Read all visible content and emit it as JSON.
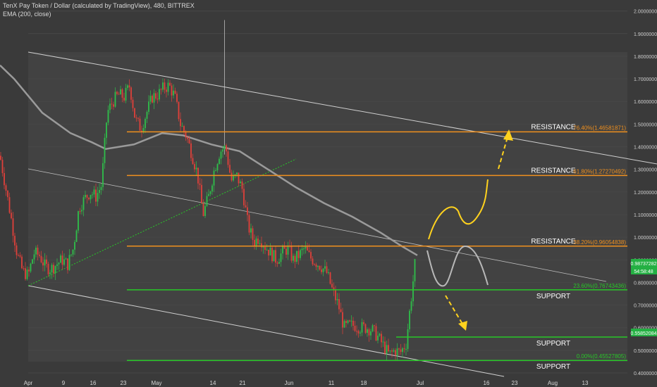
{
  "header": {
    "title": "TenX Pay Token / Dollar (calculated by TradingView), 480, BITTREX",
    "indicator": "EMA (200, close)"
  },
  "colors": {
    "background": "#3a3a3a",
    "panel": "#424242",
    "candle_up": "#2fbf4a",
    "candle_down": "#e0403a",
    "fib": "#f0901e",
    "support": "#28c828",
    "ema": "#9a9a9a",
    "channel": "#d0d0d0",
    "arrow": "#ffd21e"
  },
  "chart_data": {
    "type": "candlestick",
    "symbol": "TenX Pay Token / Dollar",
    "x_ticks": [
      "Apr",
      "9",
      "16",
      "23",
      "May",
      "14",
      "21",
      "Jun",
      "11",
      "18",
      "Jul",
      "16",
      "23",
      "Aug",
      "13"
    ],
    "y_ticks": [
      "2.00000000",
      "1.90000000",
      "1.80000000",
      "1.70000000",
      "1.60000000",
      "1.50000000",
      "1.40000000",
      "1.30000000",
      "1.20000000",
      "1.10000000",
      "1.00000000",
      "0.90000000",
      "0.80000000",
      "0.70000000",
      "0.60000000",
      "0.50000000",
      "0.40000000"
    ],
    "ylim": [
      0.4,
      2.0
    ],
    "price_path": [
      [
        0,
        1.36
      ],
      [
        8,
        1.22
      ],
      [
        16,
        1.08
      ],
      [
        24,
        0.93
      ],
      [
        32,
        0.85
      ],
      [
        40,
        0.83
      ],
      [
        48,
        0.93
      ],
      [
        56,
        0.92
      ],
      [
        64,
        0.87
      ],
      [
        72,
        0.86
      ],
      [
        80,
        0.88
      ],
      [
        88,
        0.9
      ],
      [
        96,
        0.88
      ],
      [
        104,
        0.95
      ],
      [
        112,
        1.13
      ],
      [
        120,
        1.17
      ],
      [
        128,
        1.2
      ],
      [
        136,
        1.18
      ],
      [
        144,
        1.23
      ],
      [
        152,
        1.55
      ],
      [
        160,
        1.6
      ],
      [
        168,
        1.63
      ],
      [
        176,
        1.62
      ],
      [
        184,
        1.67
      ],
      [
        192,
        1.52
      ],
      [
        200,
        1.48
      ],
      [
        208,
        1.55
      ],
      [
        216,
        1.62
      ],
      [
        224,
        1.63
      ],
      [
        232,
        1.66
      ],
      [
        240,
        1.67
      ],
      [
        248,
        1.62
      ],
      [
        256,
        1.5
      ],
      [
        264,
        1.45
      ],
      [
        272,
        1.37
      ],
      [
        280,
        1.28
      ],
      [
        288,
        1.1
      ],
      [
        296,
        1.18
      ],
      [
        304,
        1.3
      ],
      [
        312,
        1.38
      ],
      [
        320,
        1.4
      ],
      [
        328,
        1.25
      ],
      [
        336,
        1.27
      ],
      [
        344,
        1.21
      ],
      [
        352,
        1.05
      ],
      [
        360,
        0.98
      ],
      [
        368,
        1.0
      ],
      [
        376,
        0.96
      ],
      [
        384,
        0.93
      ],
      [
        392,
        0.9
      ],
      [
        400,
        0.93
      ],
      [
        408,
        0.95
      ],
      [
        416,
        0.9
      ],
      [
        424,
        0.92
      ],
      [
        432,
        0.95
      ],
      [
        440,
        0.91
      ],
      [
        448,
        0.89
      ],
      [
        456,
        0.87
      ],
      [
        464,
        0.84
      ],
      [
        472,
        0.76
      ],
      [
        480,
        0.7
      ],
      [
        488,
        0.6
      ],
      [
        496,
        0.61
      ],
      [
        504,
        0.61
      ],
      [
        512,
        0.6
      ],
      [
        520,
        0.6
      ],
      [
        528,
        0.59
      ],
      [
        536,
        0.56
      ],
      [
        544,
        0.52
      ],
      [
        552,
        0.48
      ],
      [
        560,
        0.5
      ],
      [
        568,
        0.49
      ],
      [
        576,
        0.53
      ],
      [
        584,
        0.75
      ],
      [
        590,
        0.92
      ]
    ],
    "ema200": [
      [
        0,
        1.76
      ],
      [
        20,
        1.7
      ],
      [
        60,
        1.55
      ],
      [
        100,
        1.46
      ],
      [
        130,
        1.42
      ],
      [
        150,
        1.39
      ],
      [
        190,
        1.41
      ],
      [
        230,
        1.46
      ],
      [
        260,
        1.45
      ],
      [
        300,
        1.41
      ],
      [
        340,
        1.38
      ],
      [
        380,
        1.3
      ],
      [
        420,
        1.22
      ],
      [
        460,
        1.15
      ],
      [
        500,
        1.09
      ],
      [
        540,
        1.02
      ],
      [
        570,
        0.96
      ],
      [
        592,
        0.92
      ]
    ],
    "horizontal_levels": [
      {
        "type": "resistance",
        "label": "RESISTANCE",
        "fib": "76.40%(1.46581871)",
        "value": 1.46581871
      },
      {
        "type": "resistance",
        "label": "RESISTANCE",
        "fib": "61.80%(1.27270492)",
        "value": 1.27270492
      },
      {
        "type": "resistance",
        "label": "RESISTANCE",
        "fib": "38.20%(0.96054838)",
        "value": 0.96054838
      },
      {
        "type": "support",
        "label": "SUPPORT",
        "fib": "23.60%(0.76743436)",
        "value": 0.76743436
      },
      {
        "type": "support",
        "label": "SUPPORT",
        "fib": "",
        "value": 0.5585
      },
      {
        "type": "support",
        "label": "SUPPORT",
        "fib": "0.00%(0.45527805)",
        "value": 0.45527805
      }
    ],
    "price_badges": [
      "0.98737282",
      "54:58:48",
      "0.55852084"
    ]
  }
}
